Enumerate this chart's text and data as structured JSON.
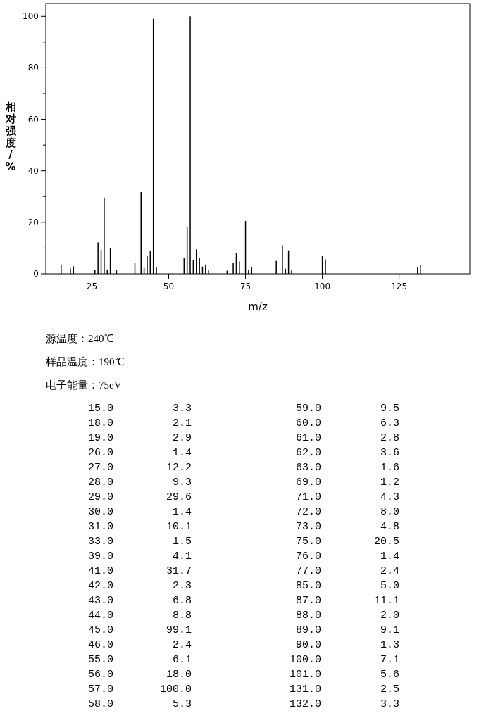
{
  "chart_data": {
    "type": "bar",
    "xlabel": "m/z",
    "ylabel": "相对强度/%",
    "annotations": [
      "源温度：240℃",
      "样品温度：190℃",
      "电子能量：75eV",
      "15.0",
      "3.3",
      "18.0",
      "2.1",
      "19.0",
      "2.9",
      "26.0",
      "1.4",
      "27.0",
      "12.2",
      "28.0",
      "9.3",
      "29.0",
      "29.6",
      "30.0",
      "1.4",
      "31.0",
      "10.1",
      "33.0",
      "1.5",
      "39.0",
      "4.1",
      "41.0",
      "31.7",
      "42.0",
      "2.3",
      "43.0",
      "6.8",
      "44.0",
      "8.8",
      "45.0",
      "99.1",
      "46.0",
      "2.4",
      "55.0",
      "6.1",
      "56.0",
      "18.0",
      "57.0",
      "100.0",
      "58.0",
      "5.3",
      "59.0",
      "9.5",
      "60.0",
      "6.3",
      "61.0",
      "2.8",
      "62.0",
      "3.6",
      "63.0",
      "1.6",
      "69.0",
      "1.2",
      "71.0",
      "4.3",
      "72.0",
      "8.0",
      "73.0",
      "4.8",
      "75.0",
      "20.5",
      "76.0",
      "1.4",
      "77.0",
      "2.4",
      "85.0",
      "5.0",
      "87.0",
      "11.1",
      "88.0",
      "2.0",
      "89.0",
      "9.1",
      "90.0",
      "1.3",
      "100.0",
      "7.1",
      "101.0",
      "5.6",
      "131.0",
      "2.5",
      "132.0",
      "3.3"
    ],
    "x": [
      15,
      18,
      19,
      26,
      27,
      28,
      29,
      30,
      31,
      33,
      39,
      41,
      42,
      43,
      44,
      45,
      46,
      55,
      56,
      57,
      58,
      59,
      60,
      61,
      62,
      63,
      69,
      71,
      72,
      73,
      75,
      76,
      77,
      85,
      87,
      88,
      89,
      90,
      100,
      101,
      131,
      132
    ],
    "values": [
      3.3,
      2.1,
      2.9,
      1.4,
      12.2,
      9.3,
      29.6,
      1.4,
      10.1,
      1.5,
      4.1,
      31.7,
      2.3,
      6.8,
      8.8,
      99.1,
      2.4,
      6.1,
      18.0,
      100.0,
      5.3,
      9.5,
      6.3,
      2.8,
      3.6,
      1.6,
      1.2,
      4.3,
      8.0,
      4.8,
      20.5,
      1.4,
      2.4,
      5.0,
      11.1,
      2.0,
      9.1,
      1.3,
      7.1,
      5.6,
      2.5,
      3.3
    ],
    "color": "#000000",
    "xlim": [
      10,
      148
    ],
    "xticks": [
      25,
      50,
      75,
      100,
      125
    ],
    "ylim": [
      0,
      105
    ],
    "yticks": [
      0,
      {
        "value": 10,
        "label": null
      },
      20,
      {
        "value": 30,
        "label": null
      },
      40,
      {
        "value": 50,
        "label": null
      },
      60,
      {
        "value": 70,
        "label": null
      },
      80,
      {
        "value": 90,
        "label": null
      },
      100
    ],
    "grid": false
  }
}
